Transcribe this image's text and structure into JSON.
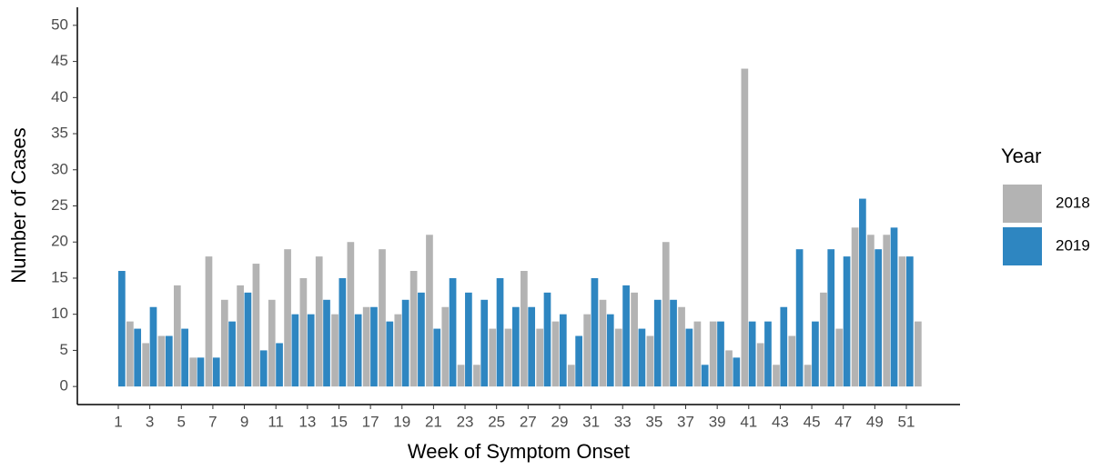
{
  "chart_data": {
    "type": "bar",
    "x_label": "Week of Symptom Onset",
    "y_label": "Number of Cases",
    "legend_title": "Year",
    "categories": [
      "1",
      null,
      "3",
      null,
      "5",
      null,
      "7",
      null,
      "9",
      null,
      "11",
      null,
      "13",
      null,
      "15",
      null,
      "17",
      null,
      "19",
      null,
      "21",
      null,
      "23",
      null,
      "25",
      null,
      "27",
      null,
      "29",
      null,
      "31",
      null,
      "33",
      null,
      "35",
      null,
      "37",
      null,
      "39",
      null,
      "41",
      null,
      "43",
      null,
      "45",
      null,
      "47",
      null,
      "49",
      null,
      "51",
      null
    ],
    "series": [
      {
        "name": "2018",
        "color": "#b3b3b3",
        "values": [
          0,
          9,
          6,
          7,
          14,
          4,
          18,
          12,
          14,
          17,
          12,
          19,
          15,
          18,
          10,
          20,
          11,
          19,
          10,
          16,
          21,
          11,
          3,
          3,
          8,
          8,
          16,
          8,
          9,
          3,
          10,
          12,
          8,
          13,
          7,
          20,
          11,
          9,
          9,
          5,
          44,
          6,
          3,
          7,
          3,
          13,
          8,
          22,
          21,
          21,
          18,
          9
        ]
      },
      {
        "name": "2019",
        "color": "#2e86c1",
        "values": [
          16,
          8,
          11,
          7,
          8,
          4,
          4,
          9,
          13,
          5,
          6,
          10,
          10,
          12,
          15,
          10,
          11,
          9,
          12,
          13,
          8,
          15,
          13,
          12,
          15,
          11,
          11,
          13,
          10,
          7,
          15,
          10,
          14,
          8,
          12,
          12,
          8,
          3,
          9,
          4,
          9,
          9,
          11,
          19,
          9,
          19,
          18,
          26,
          19,
          22,
          18,
          0
        ]
      }
    ],
    "ylim": [
      -2.5,
      52.5
    ],
    "yticks": [
      0,
      5,
      10,
      15,
      20,
      25,
      30,
      35,
      40,
      45,
      50
    ]
  }
}
